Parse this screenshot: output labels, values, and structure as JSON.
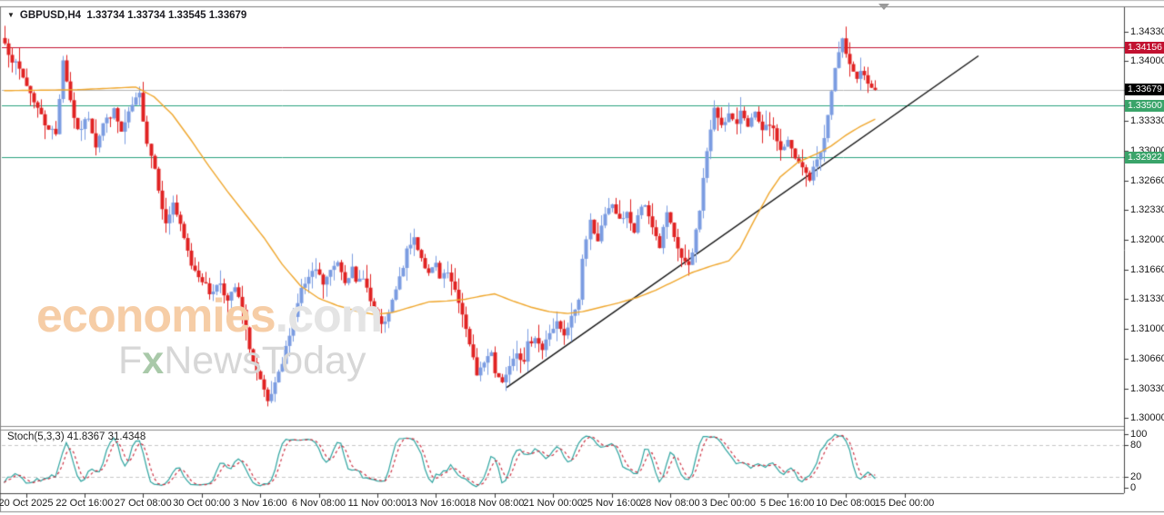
{
  "window": {
    "symbol_period": "GBPUSD,H4",
    "quote_string": "1.33734 1.33734 1.33545 1.33679",
    "dropdown_icon": "▼"
  },
  "colors": {
    "bull": "#7b9ce1",
    "bear": "#e02222",
    "wick_bull": "#7b9ce1",
    "wick_bear": "#e02222",
    "ma": "#efa62c",
    "trendline": "#111111",
    "hline_red": "#c21231",
    "hline_green": "#2aa17e",
    "current_price_line": "#b3b3b3",
    "badge_red": "#c21231",
    "badge_green": "#3aa46a",
    "badge_black": "#000000",
    "stoch_k": "#2fa4a0",
    "stoch_d": "#cc3344",
    "stoch_level": "#c6c6c6",
    "border_dark": "#444444",
    "border_gray": "#888888",
    "axis_text": "#1a1a1a"
  },
  "chart_data": {
    "type": "candlestick",
    "title": "GBPUSD,H4",
    "last_bar_display": {
      "open": "1.33734",
      "high": "1.33734",
      "low": "1.33545",
      "close": "1.33679"
    },
    "price_axis": {
      "range": [
        1.29908,
        1.34595
      ],
      "labels": [
        "1.34330",
        "1.34000",
        "1.33330",
        "1.33000",
        "1.32660",
        "1.32330",
        "1.32000",
        "1.31660",
        "1.31330",
        "1.31000",
        "1.30660",
        "1.30330",
        "1.30000"
      ]
    },
    "time_axis": {
      "labels": [
        "20 Oct 2025",
        "22 Oct 16:00",
        "27 Oct 08:00",
        "30 Oct 00:00",
        "3 Nov 16:00",
        "6 Nov 08:00",
        "11 Nov 00:00",
        "13 Nov 16:00",
        "18 Nov 08:00",
        "21 Nov 00:00",
        "25 Nov 16:00",
        "28 Nov 08:00",
        "3 Dec 00:00",
        "5 Dec 16:00",
        "10 Dec 08:00",
        "15 Dec 00:00"
      ]
    },
    "horizontal_lines": [
      {
        "price": 1.34156,
        "label": "1.34156",
        "color": "red"
      },
      {
        "price": 1.335,
        "label": "1.33500",
        "color": "green"
      },
      {
        "price": 1.32922,
        "label": "1.32922",
        "color": "green"
      }
    ],
    "current_price": {
      "price": 1.33679,
      "label": "1.33679"
    },
    "trendline": {
      "from": {
        "bar": 137.3,
        "price": 1.3034
      },
      "to": {
        "bar": 266.2,
        "price": 1.3406
      }
    },
    "moving_average": {
      "path": [
        [
          0,
          1.3367
        ],
        [
          20,
          1.3368
        ],
        [
          36,
          1.3371
        ],
        [
          41,
          1.336
        ],
        [
          46,
          1.334
        ],
        [
          51,
          1.3312
        ],
        [
          56,
          1.3282
        ],
        [
          61,
          1.3254
        ],
        [
          66,
          1.3228
        ],
        [
          71,
          1.3202
        ],
        [
          76,
          1.3172
        ],
        [
          81,
          1.3148
        ],
        [
          86,
          1.3134
        ],
        [
          91,
          1.3126
        ],
        [
          96,
          1.312
        ],
        [
          101,
          1.3116
        ],
        [
          106,
          1.3118
        ],
        [
          111,
          1.3124
        ],
        [
          116,
          1.313
        ],
        [
          121,
          1.3131
        ],
        [
          126,
          1.3133
        ],
        [
          131,
          1.3137
        ],
        [
          134,
          1.3139
        ],
        [
          139,
          1.3131
        ],
        [
          144,
          1.3124
        ],
        [
          149,
          1.3119
        ],
        [
          154,
          1.3117
        ],
        [
          158,
          1.3119
        ],
        [
          163,
          1.3124
        ],
        [
          168,
          1.3129
        ],
        [
          173,
          1.3135
        ],
        [
          178,
          1.3143
        ],
        [
          183,
          1.3153
        ],
        [
          188,
          1.3163
        ],
        [
          193,
          1.317
        ],
        [
          198,
          1.3176
        ],
        [
          201,
          1.319
        ],
        [
          205,
          1.3222
        ],
        [
          209,
          1.3252
        ],
        [
          212,
          1.327
        ],
        [
          217,
          1.3287
        ],
        [
          222,
          1.3296
        ],
        [
          226,
          1.3305
        ],
        [
          230,
          1.3317
        ],
        [
          234,
          1.3327
        ],
        [
          238,
          1.3335
        ]
      ]
    },
    "candles": {
      "bars": 239,
      "seed": 7,
      "noise": 0.0008,
      "wick": 0.0016,
      "last_close": 1.33679,
      "close_path": [
        [
          0,
          1.342
        ],
        [
          2,
          1.3402
        ],
        [
          4,
          1.339
        ],
        [
          8,
          1.3356
        ],
        [
          11,
          1.333
        ],
        [
          14,
          1.3318
        ],
        [
          16,
          1.3402
        ],
        [
          18,
          1.3356
        ],
        [
          20,
          1.332
        ],
        [
          23,
          1.3338
        ],
        [
          25,
          1.3306
        ],
        [
          27,
          1.333
        ],
        [
          30,
          1.3344
        ],
        [
          32,
          1.332
        ],
        [
          35,
          1.335
        ],
        [
          37,
          1.3362
        ],
        [
          39,
          1.331
        ],
        [
          41,
          1.328
        ],
        [
          44,
          1.3216
        ],
        [
          46,
          1.3242
        ],
        [
          49,
          1.32
        ],
        [
          51,
          1.3172
        ],
        [
          54,
          1.3155
        ],
        [
          56,
          1.314
        ],
        [
          59,
          1.3152
        ],
        [
          61,
          1.313
        ],
        [
          63,
          1.3146
        ],
        [
          65,
          1.312
        ],
        [
          66,
          1.3098
        ],
        [
          68,
          1.3062
        ],
        [
          70,
          1.304
        ],
        [
          72,
          1.3016
        ],
        [
          74,
          1.3036
        ],
        [
          76,
          1.306
        ],
        [
          78,
          1.3096
        ],
        [
          80,
          1.313
        ],
        [
          81,
          1.3144
        ],
        [
          83,
          1.3156
        ],
        [
          85,
          1.3166
        ],
        [
          87,
          1.315
        ],
        [
          89,
          1.3164
        ],
        [
          91,
          1.3176
        ],
        [
          93,
          1.3155
        ],
        [
          95,
          1.3166
        ],
        [
          96,
          1.315
        ],
        [
          98,
          1.316
        ],
        [
          100,
          1.313
        ],
        [
          102,
          1.311
        ],
        [
          104,
          1.3104
        ],
        [
          106,
          1.313
        ],
        [
          108,
          1.3156
        ],
        [
          110,
          1.3186
        ],
        [
          112,
          1.3202
        ],
        [
          114,
          1.318
        ],
        [
          116,
          1.316
        ],
        [
          118,
          1.3172
        ],
        [
          119,
          1.3155
        ],
        [
          121,
          1.3162
        ],
        [
          123,
          1.314
        ],
        [
          125,
          1.3118
        ],
        [
          127,
          1.308
        ],
        [
          129,
          1.305
        ],
        [
          131,
          1.3062
        ],
        [
          133,
          1.3076
        ],
        [
          134,
          1.3052
        ],
        [
          136,
          1.304
        ],
        [
          138,
          1.3062
        ],
        [
          140,
          1.3076
        ],
        [
          142,
          1.306
        ],
        [
          143,
          1.3082
        ],
        [
          145,
          1.3092
        ],
        [
          147,
          1.3076
        ],
        [
          149,
          1.3096
        ],
        [
          151,
          1.3106
        ],
        [
          153,
          1.309
        ],
        [
          155,
          1.3112
        ],
        [
          157,
          1.3132
        ],
        [
          158,
          1.318
        ],
        [
          160,
          1.322
        ],
        [
          162,
          1.32
        ],
        [
          164,
          1.3226
        ],
        [
          166,
          1.324
        ],
        [
          168,
          1.322
        ],
        [
          170,
          1.3232
        ],
        [
          172,
          1.3205
        ],
        [
          173,
          1.3228
        ],
        [
          175,
          1.3238
        ],
        [
          177,
          1.3215
        ],
        [
          179,
          1.3192
        ],
        [
          181,
          1.323
        ],
        [
          183,
          1.32
        ],
        [
          185,
          1.318
        ],
        [
          187,
          1.3168
        ],
        [
          188,
          1.3185
        ],
        [
          190,
          1.3235
        ],
        [
          192,
          1.33
        ],
        [
          194,
          1.3345
        ],
        [
          196,
          1.333
        ],
        [
          198,
          1.334
        ],
        [
          200,
          1.3326
        ],
        [
          201,
          1.3346
        ],
        [
          203,
          1.333
        ],
        [
          205,
          1.334
        ],
        [
          207,
          1.332
        ],
        [
          209,
          1.333
        ],
        [
          211,
          1.3312
        ],
        [
          212,
          1.33
        ],
        [
          214,
          1.331
        ],
        [
          216,
          1.329
        ],
        [
          218,
          1.328
        ],
        [
          220,
          1.3268
        ],
        [
          222,
          1.329
        ],
        [
          224,
          1.3312
        ],
        [
          225,
          1.334
        ],
        [
          227,
          1.3392
        ],
        [
          229,
          1.3422
        ],
        [
          231,
          1.34
        ],
        [
          233,
          1.338
        ],
        [
          234,
          1.339
        ],
        [
          236,
          1.3372
        ],
        [
          238,
          1.33679
        ]
      ]
    },
    "stochastic": {
      "label": "Stoch(5,3,3)",
      "k_value": "41.8367",
      "d_value": "31.4348",
      "params": [
        5,
        3,
        3
      ],
      "levels": [
        80,
        20
      ],
      "scale_labels": [
        "100",
        "80",
        "20",
        "0"
      ]
    }
  },
  "watermark": {
    "brand": "economies",
    "brand_suffix": ".com",
    "sub_f": "F",
    "sub_x": "x",
    "sub_rest": "NewsToday"
  }
}
